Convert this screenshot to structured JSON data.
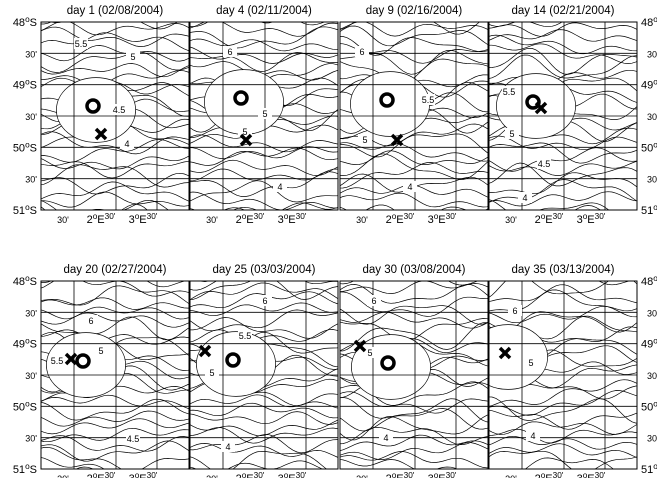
{
  "panels": [
    {
      "title": "day 1 (02/08/2004)",
      "contour_labels": [
        "5.5",
        "5",
        "4.5",
        "4"
      ]
    },
    {
      "title": "day 4 (02/11/2004)",
      "contour_labels": [
        "6",
        "5",
        "5",
        "4"
      ]
    },
    {
      "title": "day 9 (02/16/2004)",
      "contour_labels": [
        "6",
        "5.5",
        "5",
        "4"
      ]
    },
    {
      "title": "day 14 (02/21/2004)",
      "contour_labels": [
        "5.5",
        "5",
        "4.5",
        "4"
      ]
    },
    {
      "title": "day 20 (02/27/2004)",
      "contour_labels": [
        "6",
        "5",
        "5.5",
        "4.5"
      ]
    },
    {
      "title": "day 25 (03/03/2004)",
      "contour_labels": [
        "6",
        "5.5",
        "5",
        "4"
      ]
    },
    {
      "title": "day 30 (03/08/2004)",
      "contour_labels": [
        "6",
        "5",
        "4"
      ]
    },
    {
      "title": "day 35 (03/13/2004)",
      "contour_labels": [
        "6",
        "5",
        "4"
      ]
    }
  ],
  "y_axis": {
    "labels": [
      [
        "48",
        "o",
        "S"
      ],
      [
        "30'"
      ],
      [
        "49",
        "o",
        "S"
      ],
      [
        "30'"
      ],
      [
        "50",
        "o",
        "S"
      ],
      [
        "30'"
      ],
      [
        "51",
        "o",
        "S"
      ]
    ]
  },
  "x_axis": {
    "labels": [
      [
        "30'"
      ],
      [
        "2",
        "o",
        "E",
        "30'"
      ],
      [
        "3",
        "o",
        "E",
        "30'"
      ]
    ]
  }
}
